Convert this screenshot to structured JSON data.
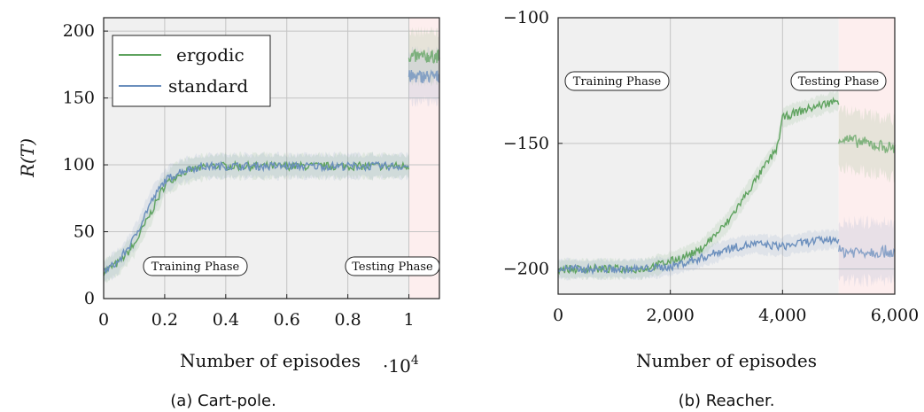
{
  "chart_data": [
    {
      "type": "line",
      "caption": "(a) Cart-pole.",
      "xlabel": "Number of episodes",
      "ylabel": "R(T)",
      "x_multiplier": "·10^4",
      "x_multiplier_base": "·10",
      "x_multiplier_exp": "4",
      "xlim": [
        0,
        1.1
      ],
      "ylim": [
        0,
        210
      ],
      "xticks": [
        0,
        0.2,
        0.4,
        0.6,
        0.8,
        1
      ],
      "xtick_labels": [
        "0",
        "0.2",
        "0.4",
        "0.6",
        "0.8",
        "1"
      ],
      "yticks": [
        0,
        50,
        100,
        150,
        200
      ],
      "ytick_labels": [
        "0",
        "50",
        "100",
        "150",
        "200"
      ],
      "grid": true,
      "legend": "top-left",
      "phases": [
        {
          "label": "Training Phase",
          "x_start": 0,
          "x_end": 1.0,
          "color": "#f0f0f0"
        },
        {
          "label": "Testing Phase",
          "x_start": 1.0,
          "x_end": 1.1,
          "color": "#fdeeee"
        }
      ],
      "series": [
        {
          "name": "ergodic",
          "color": "#5fa35f",
          "x": [
            0,
            0.05,
            0.1,
            0.15,
            0.2,
            0.25,
            0.3,
            0.35,
            0.4,
            0.5,
            0.6,
            0.7,
            0.8,
            0.9,
            1.0
          ],
          "y": [
            20,
            27,
            40,
            62,
            85,
            94,
            97,
            99,
            99,
            99,
            99,
            99,
            99,
            99,
            99
          ],
          "test_x": [
            1.0,
            1.1
          ],
          "test_y": [
            181,
            181
          ]
        },
        {
          "name": "standard",
          "color": "#6b8fbd",
          "x": [
            0,
            0.05,
            0.1,
            0.15,
            0.2,
            0.25,
            0.3,
            0.35,
            0.4,
            0.5,
            0.6,
            0.7,
            0.8,
            0.9,
            1.0
          ],
          "y": [
            20,
            28,
            45,
            70,
            88,
            95,
            98,
            99,
            99,
            99,
            99,
            99,
            99,
            99,
            99
          ],
          "test_x": [
            1.0,
            1.1
          ],
          "test_y": [
            166,
            166
          ]
        }
      ]
    },
    {
      "type": "line",
      "caption": "(b) Reacher.",
      "xlabel": "Number of episodes",
      "ylabel": "",
      "xlim": [
        0,
        6000
      ],
      "ylim": [
        -210,
        -100
      ],
      "xticks": [
        0,
        2000,
        4000,
        6000
      ],
      "xtick_labels": [
        "0",
        "2,000",
        "4,000",
        "6,000"
      ],
      "yticks": [
        -200,
        -150,
        -100
      ],
      "ytick_labels": [
        "−200",
        "−150",
        "−100"
      ],
      "grid": true,
      "phases": [
        {
          "label": "Training Phase",
          "x_start": 0,
          "x_end": 5000,
          "color": "#f0f0f0"
        },
        {
          "label": "Testing Phase",
          "x_start": 5000,
          "x_end": 6000,
          "color": "#fdeeee"
        }
      ],
      "series": [
        {
          "name": "ergodic",
          "color": "#5fa35f",
          "x": [
            0,
            500,
            1000,
            1500,
            2000,
            2500,
            3000,
            3300,
            3600,
            3900,
            4000,
            4200,
            4500,
            4800,
            5000
          ],
          "y": [
            -200,
            -200,
            -200,
            -200,
            -197,
            -193,
            -182,
            -172,
            -162,
            -152,
            -140,
            -138,
            -136,
            -134,
            -133
          ],
          "test_x": [
            5000,
            5500,
            6000
          ],
          "test_y": [
            -148,
            -150,
            -152
          ]
        },
        {
          "name": "standard",
          "color": "#6b8fbd",
          "x": [
            0,
            500,
            1000,
            1500,
            2000,
            2500,
            3000,
            3500,
            4000,
            4500,
            5000
          ],
          "y": [
            -200,
            -200,
            -200,
            -200,
            -199,
            -196,
            -192,
            -190,
            -191,
            -189,
            -188
          ],
          "test_x": [
            5000,
            5500,
            6000
          ],
          "test_y": [
            -193,
            -193,
            -193
          ]
        }
      ]
    }
  ]
}
